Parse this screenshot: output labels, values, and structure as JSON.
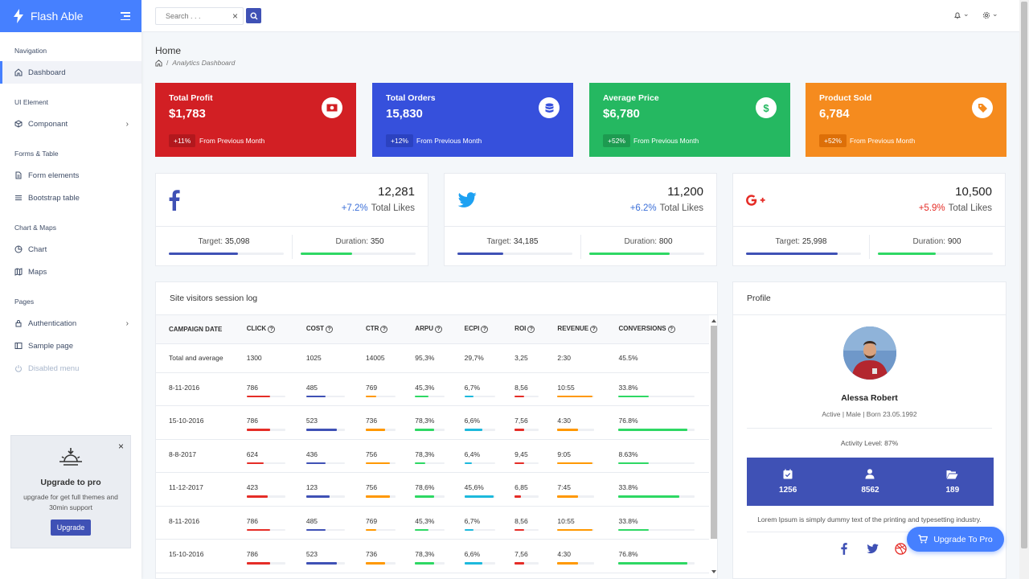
{
  "brand": {
    "name": "Flash Able"
  },
  "sidebar": {
    "sections": [
      {
        "caption": "Navigation"
      },
      {
        "caption": "UI Element"
      },
      {
        "caption": "Forms & Table"
      },
      {
        "caption": "Chart & Maps"
      },
      {
        "caption": "Pages"
      }
    ],
    "items": [
      {
        "label": "Dashboard",
        "icon": "home-icon"
      },
      {
        "label": "Componant",
        "icon": "box-icon",
        "arrow": "›"
      },
      {
        "label": "Form elements",
        "icon": "file-text-icon"
      },
      {
        "label": "Bootstrap table",
        "icon": "list-icon"
      },
      {
        "label": "Chart",
        "icon": "pie-chart-icon"
      },
      {
        "label": "Maps",
        "icon": "map-icon"
      },
      {
        "label": "Authentication",
        "icon": "lock-icon",
        "arrow": "›"
      },
      {
        "label": "Sample page",
        "icon": "sidebar-icon"
      },
      {
        "label": "Disabled menu",
        "icon": "power-icon"
      }
    ]
  },
  "upgrade_card": {
    "close": "×",
    "title": "Upgrade to pro",
    "text": "upgrade for get full themes and 30min support",
    "button": "Upgrade"
  },
  "header": {
    "search_placeholder": "Search . . .",
    "clear": "×",
    "chevron": "⌄"
  },
  "page": {
    "title": "Home",
    "breadcrumb": "Analytics Dashboard",
    "breadcrumb_sep": "/"
  },
  "stat_cards": [
    {
      "title": "Total Profit",
      "value": "$1,783",
      "badge": "+11%",
      "foot": "From Previous Month",
      "color": "#e52d27",
      "icon": "money-icon"
    },
    {
      "title": "Total Orders",
      "value": "15,830",
      "badge": "+12%",
      "foot": "From Previous Month",
      "color": "#3f51b5",
      "icon": "database-icon"
    },
    {
      "title": "Average Price",
      "value": "$6,780",
      "badge": "+52%",
      "foot": "From Previous Month",
      "color": "#2ed8b6",
      "icon": "dollar-icon"
    },
    {
      "title": "Product Sold",
      "value": "6,784",
      "badge": "+52%",
      "foot": "From Previous Month",
      "color": "#ffb64d",
      "icon": "tag-icon"
    }
  ],
  "social_cards": [
    {
      "network": "facebook",
      "count": "12,281",
      "pct": "+7.2%",
      "likes": "Total Likes",
      "pct_color": "#4680ff",
      "target_label": "Target:",
      "target": "35,098",
      "duration_label": "Duration:",
      "duration": "350",
      "target_fill": 0.6,
      "duration_fill": 0.45
    },
    {
      "network": "twitter",
      "count": "11,200",
      "pct": "+6.2%",
      "likes": "Total Likes",
      "pct_color": "#4680ff",
      "target_label": "Target:",
      "target": "34,185",
      "duration_label": "Duration:",
      "duration": "800",
      "target_fill": 0.4,
      "duration_fill": 0.7
    },
    {
      "network": "google-plus",
      "count": "10,500",
      "pct": "+5.9%",
      "likes": "Total Likes",
      "pct_color": "#e52d27",
      "target_label": "Target:",
      "target": "25,998",
      "duration_label": "Duration:",
      "duration": "900",
      "target_fill": 0.8,
      "duration_fill": 0.5
    }
  ],
  "session_log": {
    "title": "Site visitors session log",
    "columns": [
      "CAMPAIGN DATE",
      "CLICK",
      "COST",
      "CTR",
      "ARPU",
      "ECPI",
      "ROI",
      "REVENUE",
      "CONVERSIONS"
    ],
    "total": [
      "Total and average",
      "1300",
      "1025",
      "14005",
      "95,3%",
      "29,7%",
      "3,25",
      "2:30",
      "45.5%"
    ],
    "rows": [
      [
        "8-11-2016",
        "786",
        "485",
        "769",
        "45,3%",
        "6,7%",
        "8,56",
        "10:55",
        "33.8%"
      ],
      [
        "15-10-2016",
        "786",
        "523",
        "736",
        "78,3%",
        "6,6%",
        "7,56",
        "4:30",
        "76.8%"
      ],
      [
        "8-8-2017",
        "624",
        "436",
        "756",
        "78,3%",
        "6,4%",
        "9,45",
        "9:05",
        "8.63%"
      ],
      [
        "11-12-2017",
        "423",
        "123",
        "756",
        "78,6%",
        "45,6%",
        "6,85",
        "7:45",
        "33.8%"
      ],
      [
        "8-11-2016",
        "786",
        "485",
        "769",
        "45,3%",
        "6,7%",
        "8,56",
        "10:55",
        "33.8%"
      ],
      [
        "15-10-2016",
        "786",
        "523",
        "736",
        "78,3%",
        "6,6%",
        "7,56",
        "4:30",
        "76.8%"
      ]
    ],
    "bar_fills": [
      [
        0.6,
        0.5,
        0.35,
        0.45,
        0.3,
        0.4,
        0.95,
        0.4
      ],
      [
        0.6,
        0.8,
        0.65,
        0.65,
        0.6,
        0.4,
        0.55,
        0.9
      ],
      [
        0.45,
        0.5,
        0.8,
        0.35,
        0.25,
        0.4,
        0.95,
        0.4
      ],
      [
        0.55,
        0.6,
        0.8,
        0.65,
        0.95,
        0.25,
        0.55,
        0.8
      ],
      [
        0.6,
        0.5,
        0.35,
        0.45,
        0.3,
        0.4,
        0.95,
        0.4
      ],
      [
        0.6,
        0.8,
        0.65,
        0.65,
        0.6,
        0.4,
        0.55,
        0.9
      ]
    ],
    "bar_colors": [
      "#e52d27",
      "#3f51b5",
      "#ff9800",
      "#2ed864",
      "#1db9dc",
      "#e52d27",
      "#ff9800",
      "#2ed864"
    ]
  },
  "profile": {
    "title": "Profile",
    "name": "Alessa Robert",
    "meta": "Active | Male | Born 23.05.1992",
    "activity": "Activity Level: 87%",
    "stats": [
      {
        "icon": "calendar-check-icon",
        "value": "1256"
      },
      {
        "icon": "user-icon",
        "value": "8562"
      },
      {
        "icon": "folder-open-icon",
        "value": "189"
      }
    ],
    "bio": "Lorem Ipsum is simply dummy text of the printing and typesetting industry."
  },
  "fab": {
    "label": "Upgrade To Pro"
  }
}
